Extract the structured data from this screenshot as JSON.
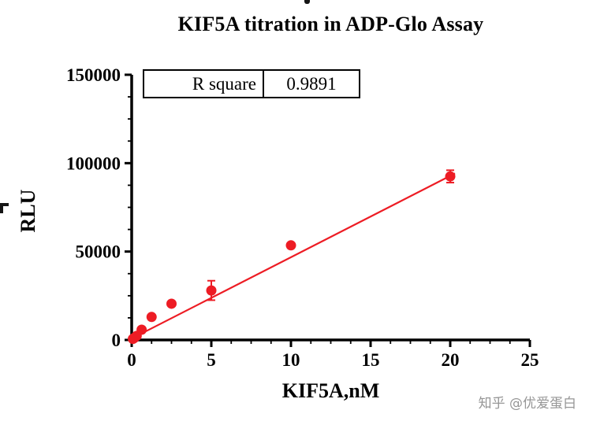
{
  "title": "KIF5A titration in ADP-Glo Assay",
  "stats_box": {
    "label": "R square",
    "value": "0.9891"
  },
  "watermark": "知乎 @优爱蛋白",
  "chart_data": {
    "type": "scatter",
    "title": "KIF5A titration in ADP-Glo Assay",
    "xlabel": "KIF5A,nM",
    "ylabel": "RLU",
    "xlim": [
      0,
      25
    ],
    "ylim": [
      0,
      150000
    ],
    "x_ticks": [
      0,
      5,
      10,
      15,
      20,
      25
    ],
    "y_ticks": [
      0,
      50000,
      100000,
      150000
    ],
    "x_minor_step": 1.25,
    "y_minor_step": 12500,
    "grid": false,
    "legend": "none",
    "axis_color": "#000000",
    "series_color": "#ed1c24",
    "r_square": 0.9891,
    "points": [
      {
        "x": 0.078,
        "y": 600,
        "yerr": 0
      },
      {
        "x": 0.156,
        "y": 1100,
        "yerr": 0
      },
      {
        "x": 0.3125,
        "y": 2300,
        "yerr": 0
      },
      {
        "x": 0.625,
        "y": 5800,
        "yerr": 0
      },
      {
        "x": 1.25,
        "y": 13000,
        "yerr": 0
      },
      {
        "x": 2.5,
        "y": 20500,
        "yerr": 0
      },
      {
        "x": 5,
        "y": 28000,
        "yerr": 5500
      },
      {
        "x": 10,
        "y": 53500,
        "yerr": 1200
      },
      {
        "x": 20,
        "y": 92500,
        "yerr": 3500
      }
    ],
    "fit_line": {
      "slope": 4600,
      "intercept": 800,
      "x_range": [
        0,
        20.3
      ]
    }
  }
}
